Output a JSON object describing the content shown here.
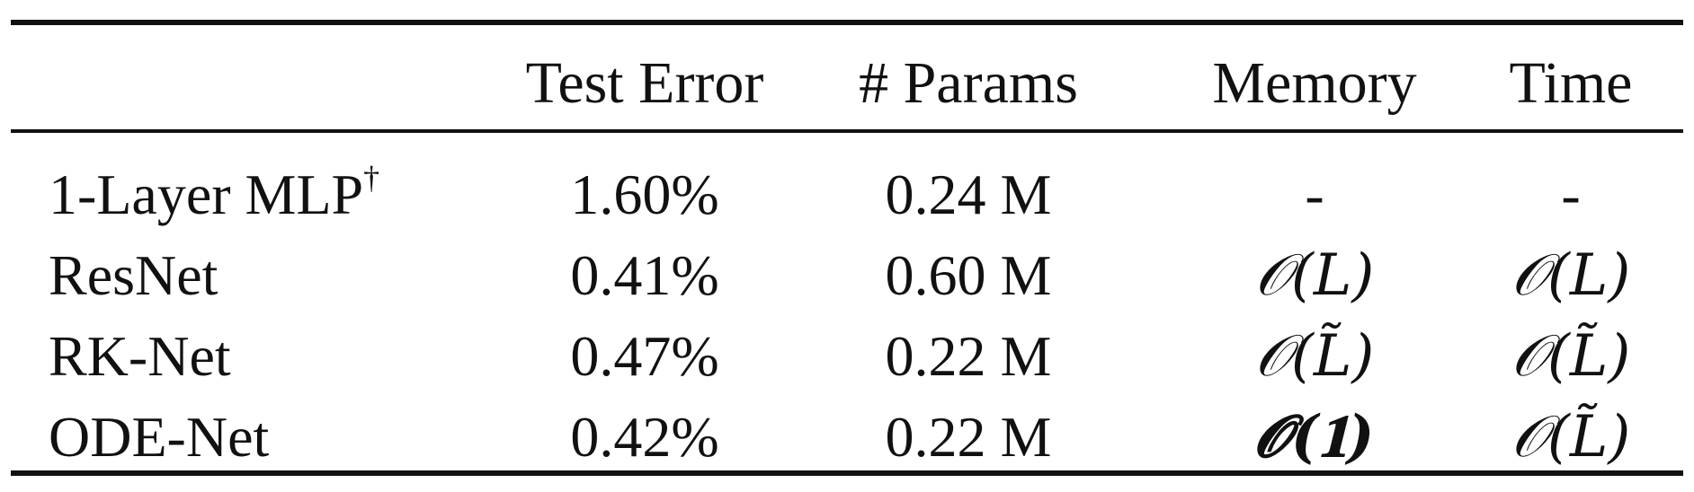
{
  "table": {
    "headers": [
      "",
      "Test Error",
      "# Params",
      "Memory",
      "Time"
    ],
    "rows": [
      {
        "model": "1-Layer MLP",
        "model_sup": "†",
        "test_error": "1.60%",
        "params": "0.24 M",
        "memory": "-",
        "time": "-"
      },
      {
        "model": "ResNet",
        "test_error": "0.41%",
        "params": "0.60 M",
        "memory": "𝒪(L)",
        "time": "𝒪(L)"
      },
      {
        "model": "RK-Net",
        "test_error": "0.47%",
        "params": "0.22 M",
        "memory": "𝒪(L̃)",
        "time": "𝒪(L̃)"
      },
      {
        "model": "ODE-Net",
        "test_error": "0.42%",
        "params": "0.22 M",
        "memory": "𝓞(𝟏)",
        "time": "𝒪(L̃)"
      }
    ]
  }
}
